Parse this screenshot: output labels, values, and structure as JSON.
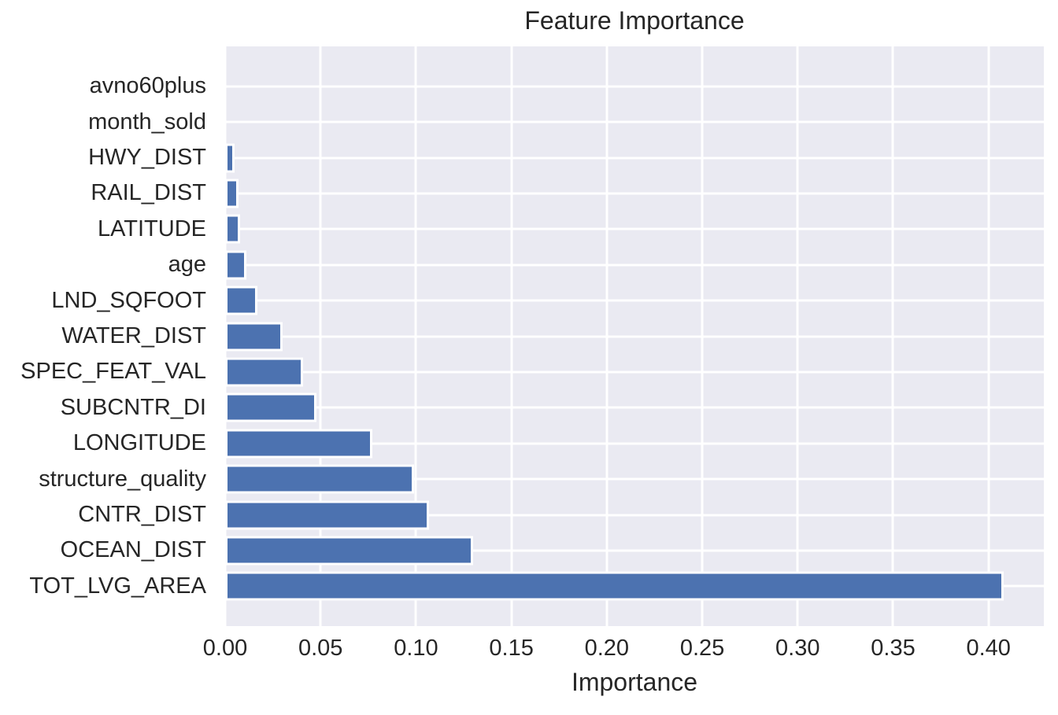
{
  "chart_data": {
    "type": "bar",
    "orientation": "horizontal",
    "title": "Feature Importance",
    "xlabel": "Importance",
    "ylabel": "",
    "categories": [
      "avno60plus",
      "month_sold",
      "HWY_DIST",
      "RAIL_DIST",
      "LATITUDE",
      "age",
      "LND_SQFOOT",
      "WATER_DIST",
      "SPEC_FEAT_VAL",
      "SUBCNTR_DI",
      "LONGITUDE",
      "structure_quality",
      "CNTR_DIST",
      "OCEAN_DIST",
      "TOT_LVG_AREA"
    ],
    "values": [
      0.0,
      0.0,
      0.005,
      0.007,
      0.008,
      0.011,
      0.017,
      0.03,
      0.041,
      0.048,
      0.077,
      0.099,
      0.107,
      0.13,
      0.408
    ],
    "xlim": [
      0,
      0.429
    ],
    "xticks": [
      0.0,
      0.05,
      0.1,
      0.15,
      0.2,
      0.25,
      0.3,
      0.35,
      0.4
    ],
    "xtick_labels": [
      "0.00",
      "0.05",
      "0.10",
      "0.15",
      "0.20",
      "0.25",
      "0.30",
      "0.35",
      "0.40"
    ],
    "grid": true,
    "legend": false,
    "colors": {
      "bar": "#4c72b0",
      "bar_edge": "#ffffff",
      "plot_background": "#eaeaf2",
      "gridline": "#ffffff",
      "figure_background": "#ffffff",
      "text": "#262626"
    }
  }
}
